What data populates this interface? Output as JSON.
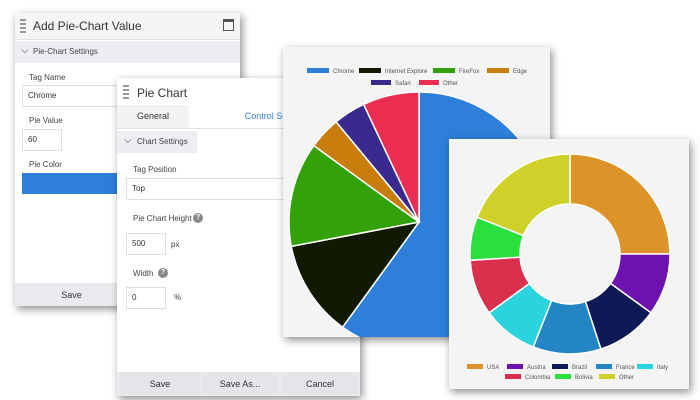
{
  "add_panel": {
    "title": "Add Pie-Chart Value",
    "section": "Pie-Chart Settings",
    "tag_name_label": "Tag Name",
    "tag_name_value": "Chrome",
    "pie_value_label": "Pie Value",
    "pie_value": "60",
    "pie_color_label": "Pie Color",
    "pie_color": "#2e7fd9",
    "save_label": "Save"
  },
  "pie_panel": {
    "title": "Pie Chart",
    "tabs": [
      "General",
      "Control Setting"
    ],
    "active_tab": "Control Setting",
    "section": "Chart Settings",
    "tag_position_label": "Tag Position",
    "tag_position_value": "Top",
    "height_label": "Pie Chart Height",
    "height_value": "500",
    "height_unit": "px",
    "width_label": "Width",
    "width_value": "0",
    "width_unit": "%",
    "help_glyph": "?",
    "buttons": {
      "save": "Save",
      "save_as": "Save As...",
      "cancel": "Cancel"
    }
  },
  "chart_data": [
    {
      "type": "pie",
      "legend_position": "top",
      "categories": [
        "Chrome",
        "Internet Explore",
        "FireFox",
        "Edge",
        "Safari",
        "Other"
      ],
      "values": [
        60,
        12,
        13,
        4,
        4,
        7
      ],
      "colors": [
        "#2e7fd9",
        "#111a00",
        "#33a20a",
        "#c97d0d",
        "#3a2a8e",
        "#ea2d50"
      ]
    },
    {
      "type": "doughnut",
      "legend_position": "bottom",
      "categories": [
        "USA",
        "Austria",
        "Brazil",
        "France",
        "Italy",
        "Colombia",
        "Bolivia",
        "Other"
      ],
      "values": [
        25,
        10,
        10,
        11,
        9,
        9,
        7,
        19
      ],
      "colors": [
        "#dc9428",
        "#6d12ae",
        "#0e1a55",
        "#2386c3",
        "#2bd3dc",
        "#d9304e",
        "#29e03d",
        "#cfd029"
      ]
    }
  ]
}
